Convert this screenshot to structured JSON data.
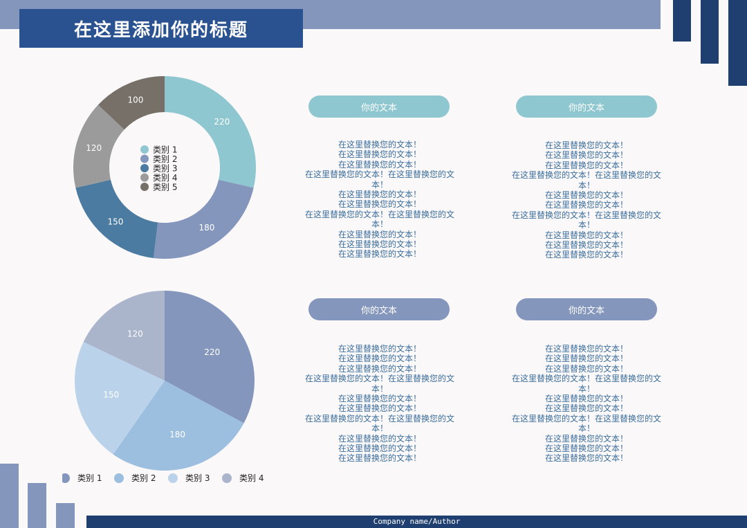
{
  "title": "在这里添加你的标题",
  "footer": "Company name/Author",
  "chart_data": [
    {
      "type": "pie",
      "variant": "donut",
      "categories": [
        "类别 1",
        "类别 2",
        "类别 3",
        "类别 4",
        "类别 5"
      ],
      "values": [
        220,
        180,
        150,
        120,
        100
      ],
      "colors": [
        "#8fc7d0",
        "#8596bd",
        "#4b7ba0",
        "#9b9b9b",
        "#777069"
      ],
      "legend": "center"
    },
    {
      "type": "pie",
      "categories": [
        "类别 1",
        "类别 2",
        "类别 3",
        "类别 4"
      ],
      "values": [
        220,
        180,
        150,
        120
      ],
      "colors": [
        "#8596bd",
        "#9dbfdf",
        "#bad3ea",
        "#aab5cc"
      ],
      "legend": "bottom"
    }
  ],
  "cards": [
    {
      "label": "你的文本",
      "lines": [
        "在这里替换您的文本！",
        "在这里替换您的文本！",
        "在这里替换您的文本！",
        "在这里替换您的文本！在这里替换您的文",
        "本！",
        "在这里替换您的文本！",
        "在这里替换您的文本！",
        "在这里替换您的文本！在这里替换您的文",
        "本！",
        "在这里替换您的文本！",
        "在这里替换您的文本！",
        "在这里替换您的文本！"
      ]
    },
    {
      "label": "你的文本",
      "lines": [
        "在这里替换您的文本！",
        "在这里替换您的文本！",
        "在这里替换您的文本！",
        "在这里替换您的文本！在这里替换您的文",
        "本！",
        "在这里替换您的文本！",
        "在这里替换您的文本！",
        "在这里替换您的文本！在这里替换您的文",
        "本！",
        "在这里替换您的文本！",
        "在这里替换您的文本！",
        "在这里替换您的文本！"
      ]
    },
    {
      "label": "你的文本",
      "lines": [
        "在这里替换您的文本！",
        "在这里替换您的文本！",
        "在这里替换您的文本！",
        "在这里替换您的文本！在这里替换您的文",
        "本！",
        "在这里替换您的文本！",
        "在这里替换您的文本！",
        "在这里替换您的文本！在这里替换您的文",
        "本！",
        "在这里替换您的文本！",
        "在这里替换您的文本！",
        "在这里替换您的文本！"
      ]
    },
    {
      "label": "你的文本",
      "lines": [
        "在这里替换您的文本！",
        "在这里替换您的文本！",
        "在这里替换您的文本！",
        "在这里替换您的文本！在这里替换您的文",
        "本！",
        "在这里替换您的文本！",
        "在这里替换您的文本！",
        "在这里替换您的文本！在这里替换您的文",
        "本！",
        "在这里替换您的文本！",
        "在这里替换您的文本！",
        "在这里替换您的文本！"
      ]
    }
  ]
}
